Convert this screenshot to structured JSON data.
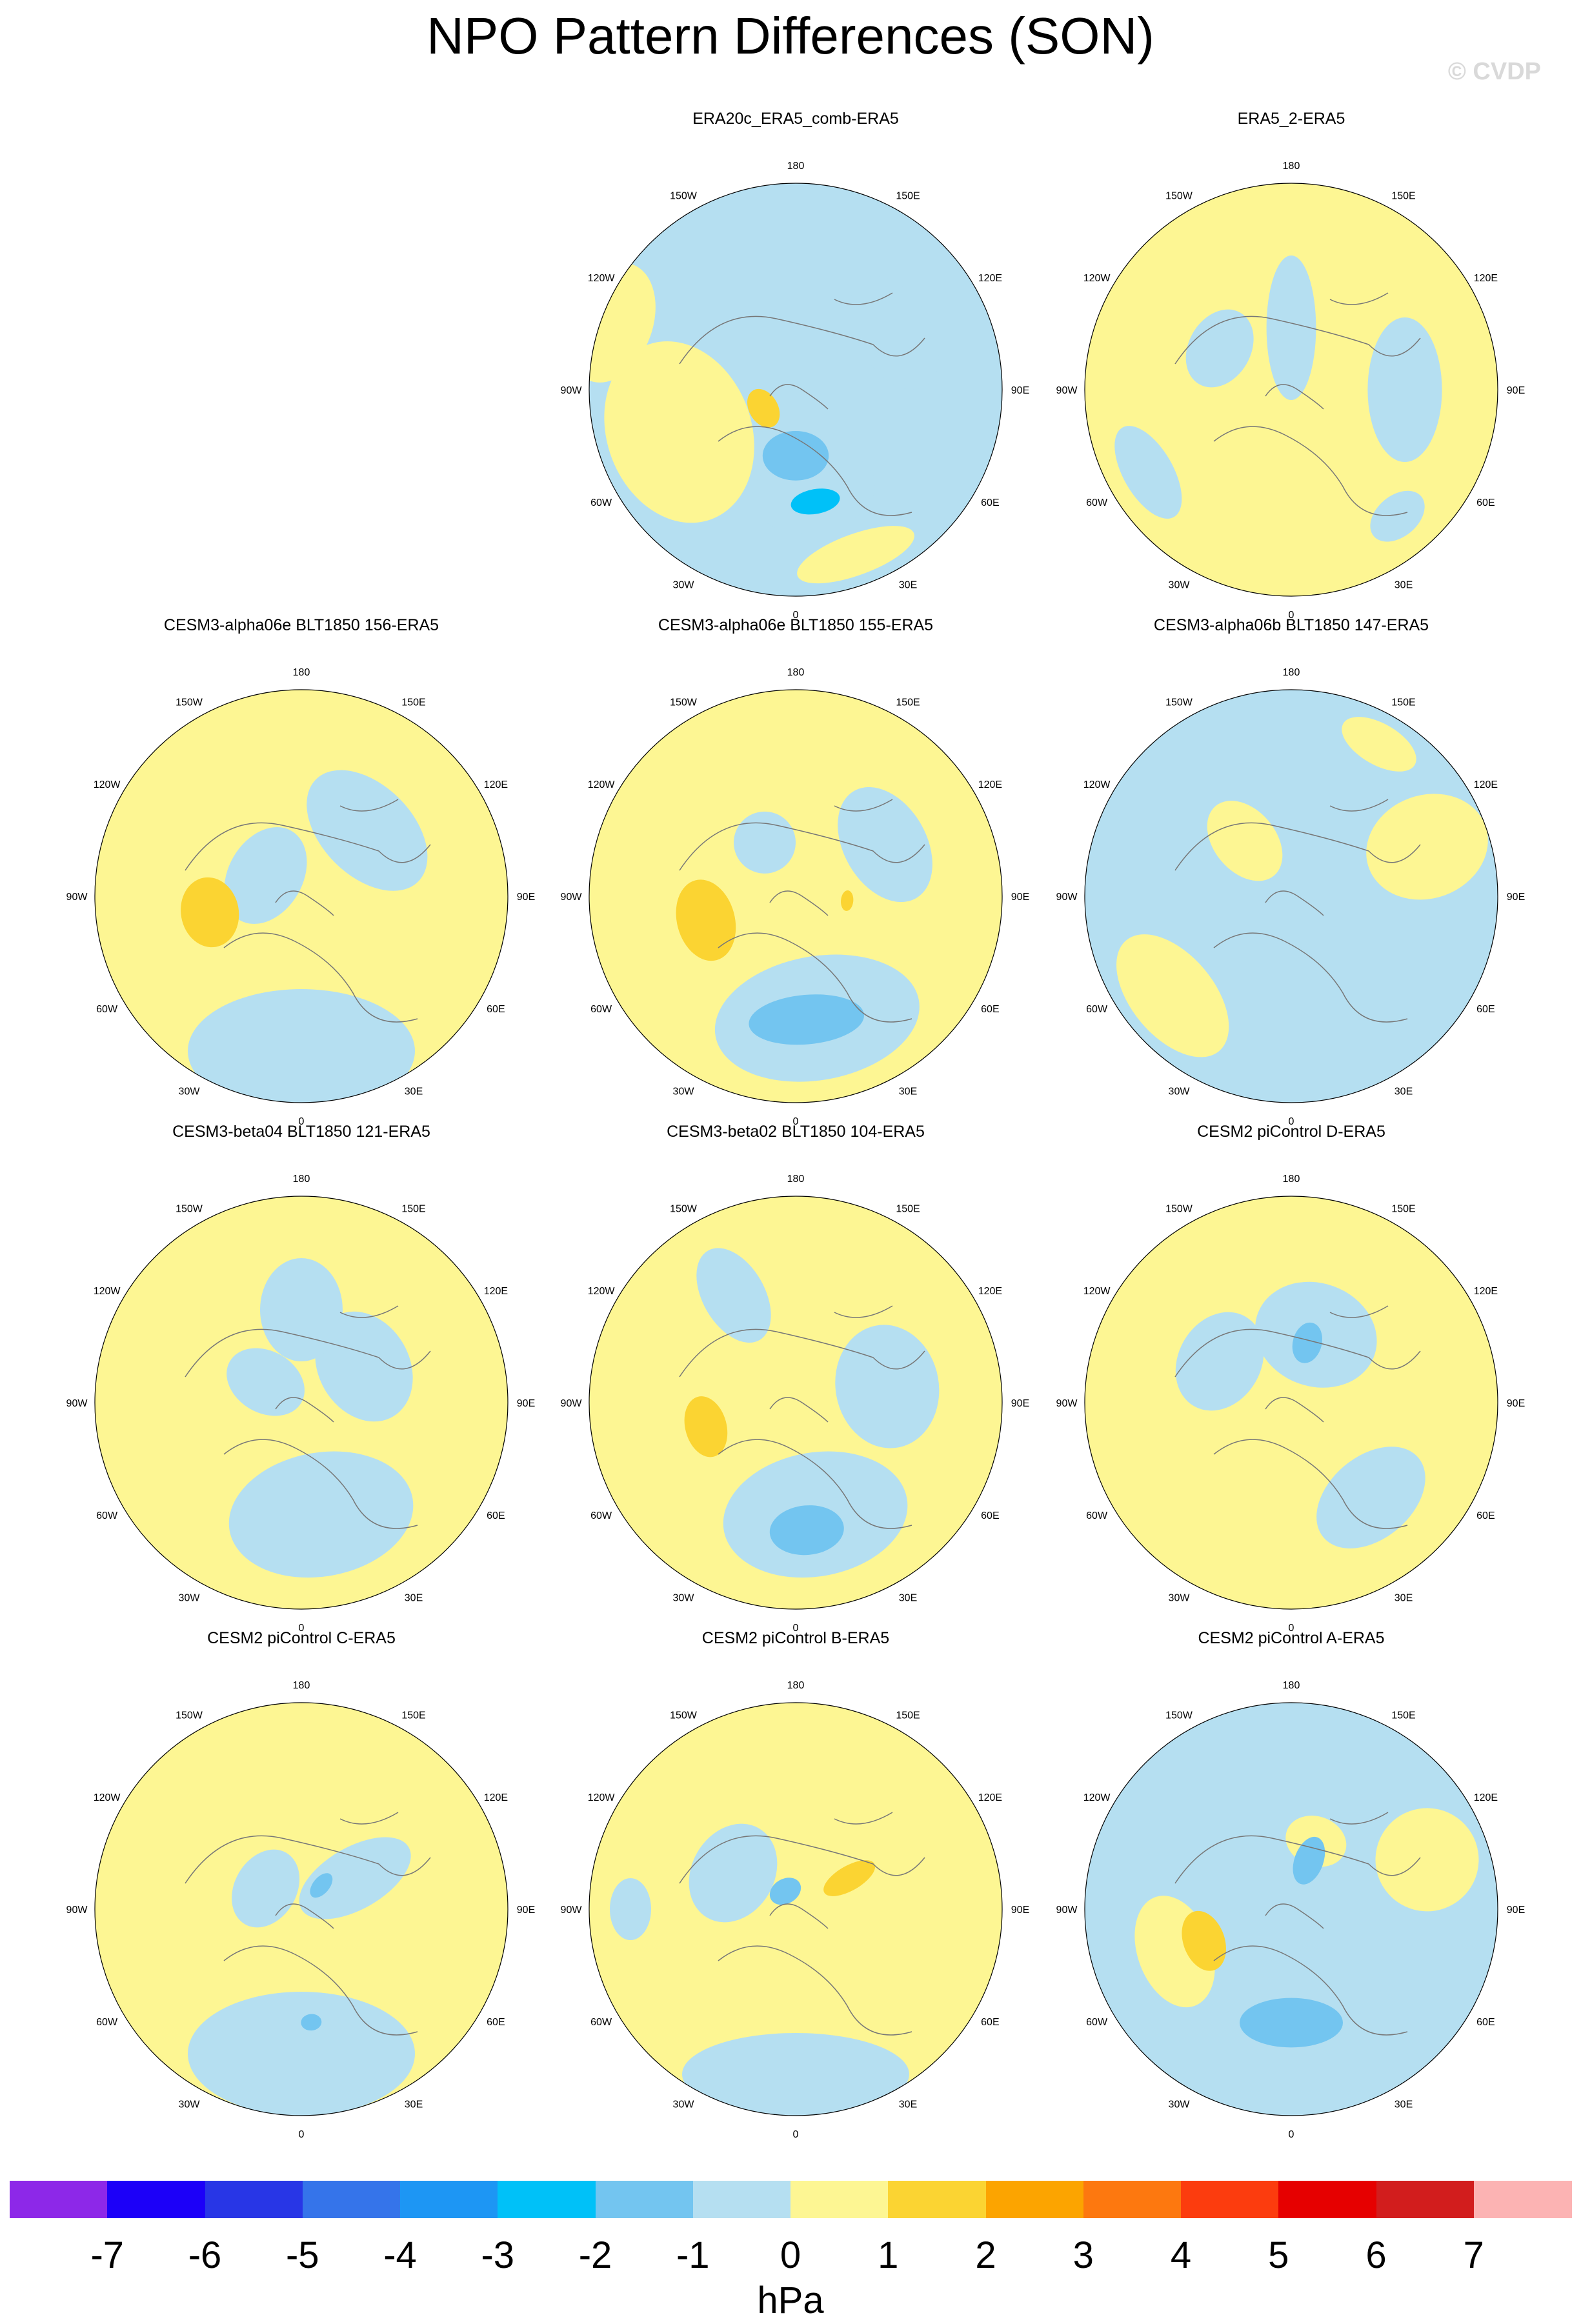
{
  "title": "NPO Pattern Differences (SON)",
  "watermark": "© CVDP",
  "lon_labels": [
    "180",
    "150E",
    "120E",
    "90E",
    "60E",
    "30E",
    "0",
    "30W",
    "60W",
    "90W",
    "120W",
    "150W"
  ],
  "panels": [
    {
      "title": "ERA20c_ERA5_comb-ERA5",
      "row": 0,
      "col": 1,
      "base": "neg",
      "blobs": [
        {
          "a": 170,
          "r": 0.5,
          "rx": 0.3,
          "ry": 0.2,
          "lvl": "neg"
        },
        {
          "a": 60,
          "r": 0.55,
          "rx": 0.3,
          "ry": 0.18,
          "lvl": "neg"
        },
        {
          "a": 250,
          "r": 0.6,
          "rx": 0.45,
          "ry": 0.35,
          "lvl": "pos"
        },
        {
          "a": 160,
          "r": 0.85,
          "rx": 0.3,
          "ry": 0.1,
          "lvl": "pos"
        },
        {
          "a": 290,
          "r": 0.95,
          "rx": 0.3,
          "ry": 0.2,
          "lvl": "pos"
        },
        {
          "a": 180,
          "r": 0.32,
          "rx": 0.16,
          "ry": 0.12,
          "lvl": "neg2"
        },
        {
          "a": 170,
          "r": 0.55,
          "rx": 0.12,
          "ry": 0.06,
          "lvl": "neg3"
        },
        {
          "a": 240,
          "r": 0.18,
          "rx": 0.1,
          "ry": 0.07,
          "lvl": "pos2"
        }
      ]
    },
    {
      "title": "ERA5_2-ERA5",
      "row": 0,
      "col": 2,
      "base": "pos",
      "blobs": [
        {
          "a": 90,
          "r": 0.55,
          "rx": 0.35,
          "ry": 0.18,
          "lvl": "neg"
        },
        {
          "a": 240,
          "r": 0.8,
          "rx": 0.25,
          "ry": 0.12,
          "lvl": "neg"
        },
        {
          "a": 0,
          "r": 0.3,
          "rx": 0.12,
          "ry": 0.35,
          "lvl": "neg"
        },
        {
          "a": 140,
          "r": 0.8,
          "rx": 0.15,
          "ry": 0.1,
          "lvl": "neg"
        },
        {
          "a": 300,
          "r": 0.4,
          "rx": 0.2,
          "ry": 0.15,
          "lvl": "neg"
        }
      ]
    },
    {
      "title": "CESM3-alpha06e BLT1850 156-ERA5",
      "row": 1,
      "col": 0,
      "base": "pos",
      "blobs": [
        {
          "a": 180,
          "r": 0.75,
          "rx": 0.55,
          "ry": 0.3,
          "lvl": "neg"
        },
        {
          "a": 45,
          "r": 0.45,
          "rx": 0.35,
          "ry": 0.22,
          "lvl": "neg"
        },
        {
          "a": 300,
          "r": 0.2,
          "rx": 0.25,
          "ry": 0.18,
          "lvl": "neg"
        },
        {
          "a": 260,
          "r": 0.45,
          "rx": 0.17,
          "ry": 0.14,
          "lvl": "pos2"
        }
      ]
    },
    {
      "title": "CESM3-alpha06e BLT1850 155-ERA5",
      "row": 1,
      "col": 1,
      "base": "pos",
      "blobs": [
        {
          "a": 170,
          "r": 0.6,
          "rx": 0.5,
          "ry": 0.3,
          "lvl": "neg"
        },
        {
          "a": 60,
          "r": 0.5,
          "rx": 0.3,
          "ry": 0.2,
          "lvl": "neg"
        },
        {
          "a": 330,
          "r": 0.3,
          "rx": 0.15,
          "ry": 0.15,
          "lvl": "neg"
        },
        {
          "a": 175,
          "r": 0.6,
          "rx": 0.28,
          "ry": 0.12,
          "lvl": "neg2"
        },
        {
          "a": 255,
          "r": 0.45,
          "rx": 0.2,
          "ry": 0.14,
          "lvl": "pos2"
        },
        {
          "a": 95,
          "r": 0.25,
          "rx": 0.05,
          "ry": 0.03,
          "lvl": "pos2"
        }
      ]
    },
    {
      "title": "CESM3-alpha06b BLT1850 147-ERA5",
      "row": 1,
      "col": 2,
      "base": "neg",
      "blobs": [
        {
          "a": 70,
          "r": 0.7,
          "rx": 0.25,
          "ry": 0.3,
          "lvl": "pos"
        },
        {
          "a": 230,
          "r": 0.75,
          "rx": 0.35,
          "ry": 0.2,
          "lvl": "pos"
        },
        {
          "a": 320,
          "r": 0.35,
          "rx": 0.15,
          "ry": 0.22,
          "lvl": "pos"
        },
        {
          "a": 30,
          "r": 0.85,
          "rx": 0.2,
          "ry": 0.1,
          "lvl": "pos"
        }
      ]
    },
    {
      "title": "CESM3-beta04 BLT1850 121-ERA5",
      "row": 2,
      "col": 0,
      "base": "pos",
      "blobs": [
        {
          "a": 170,
          "r": 0.55,
          "rx": 0.45,
          "ry": 0.3,
          "lvl": "neg"
        },
        {
          "a": 60,
          "r": 0.35,
          "rx": 0.28,
          "ry": 0.22,
          "lvl": "neg"
        },
        {
          "a": 0,
          "r": 0.45,
          "rx": 0.2,
          "ry": 0.25,
          "lvl": "neg"
        },
        {
          "a": 300,
          "r": 0.2,
          "rx": 0.15,
          "ry": 0.2,
          "lvl": "neg"
        }
      ]
    },
    {
      "title": "CESM3-beta02 BLT1850 104-ERA5",
      "row": 2,
      "col": 1,
      "base": "pos",
      "blobs": [
        {
          "a": 170,
          "r": 0.55,
          "rx": 0.45,
          "ry": 0.3,
          "lvl": "neg"
        },
        {
          "a": 80,
          "r": 0.45,
          "rx": 0.3,
          "ry": 0.25,
          "lvl": "neg"
        },
        {
          "a": 330,
          "r": 0.6,
          "rx": 0.15,
          "ry": 0.25,
          "lvl": "neg"
        },
        {
          "a": 175,
          "r": 0.62,
          "rx": 0.18,
          "ry": 0.12,
          "lvl": "neg2"
        },
        {
          "a": 255,
          "r": 0.45,
          "rx": 0.15,
          "ry": 0.1,
          "lvl": "pos2"
        }
      ]
    },
    {
      "title": "CESM2 piControl D-ERA5",
      "row": 2,
      "col": 2,
      "base": "pos",
      "blobs": [
        {
          "a": 140,
          "r": 0.6,
          "rx": 0.3,
          "ry": 0.2,
          "lvl": "neg"
        },
        {
          "a": 20,
          "r": 0.35,
          "rx": 0.3,
          "ry": 0.25,
          "lvl": "neg"
        },
        {
          "a": 300,
          "r": 0.4,
          "rx": 0.25,
          "ry": 0.2,
          "lvl": "neg"
        },
        {
          "a": 15,
          "r": 0.3,
          "rx": 0.07,
          "ry": 0.1,
          "lvl": "neg2"
        }
      ]
    },
    {
      "title": "CESM2 piControl C-ERA5",
      "row": 3,
      "col": 0,
      "base": "pos",
      "blobs": [
        {
          "a": 180,
          "r": 0.7,
          "rx": 0.55,
          "ry": 0.3,
          "lvl": "neg"
        },
        {
          "a": 300,
          "r": 0.2,
          "rx": 0.2,
          "ry": 0.15,
          "lvl": "neg"
        },
        {
          "a": 60,
          "r": 0.3,
          "rx": 0.15,
          "ry": 0.3,
          "lvl": "neg"
        },
        {
          "a": 175,
          "r": 0.55,
          "rx": 0.05,
          "ry": 0.04,
          "lvl": "neg2"
        },
        {
          "a": 40,
          "r": 0.15,
          "rx": 0.04,
          "ry": 0.07,
          "lvl": "neg2"
        }
      ]
    },
    {
      "title": "CESM2 piControl B-ERA5",
      "row": 3,
      "col": 1,
      "base": "pos",
      "blobs": [
        {
          "a": 180,
          "r": 0.8,
          "rx": 0.55,
          "ry": 0.2,
          "lvl": "neg"
        },
        {
          "a": 300,
          "r": 0.35,
          "rx": 0.25,
          "ry": 0.2,
          "lvl": "neg"
        },
        {
          "a": 270,
          "r": 0.8,
          "rx": 0.15,
          "ry": 0.1,
          "lvl": "neg"
        },
        {
          "a": 330,
          "r": 0.1,
          "rx": 0.08,
          "ry": 0.06,
          "lvl": "neg2"
        },
        {
          "a": 60,
          "r": 0.3,
          "rx": 0.06,
          "ry": 0.14,
          "lvl": "pos2"
        }
      ]
    },
    {
      "title": "CESM2 piControl A-ERA5",
      "row": 3,
      "col": 2,
      "base": "neg",
      "blobs": [
        {
          "a": 70,
          "r": 0.7,
          "rx": 0.25,
          "ry": 0.25,
          "lvl": "pos"
        },
        {
          "a": 250,
          "r": 0.6,
          "rx": 0.28,
          "ry": 0.18,
          "lvl": "pos"
        },
        {
          "a": 20,
          "r": 0.35,
          "rx": 0.15,
          "ry": 0.12,
          "lvl": "pos"
        },
        {
          "a": 180,
          "r": 0.55,
          "rx": 0.25,
          "ry": 0.12,
          "lvl": "neg2"
        },
        {
          "a": 250,
          "r": 0.45,
          "rx": 0.15,
          "ry": 0.1,
          "lvl": "pos2"
        },
        {
          "a": 20,
          "r": 0.25,
          "rx": 0.07,
          "ry": 0.12,
          "lvl": "neg2"
        }
      ]
    }
  ],
  "level_colors": {
    "neg": "#b5dff1",
    "pos": "#fdf693",
    "neg2": "#73c5f0",
    "neg3": "#00c1f8",
    "pos2": "#fbd432"
  },
  "colorbar": {
    "colors": [
      "#8d28e8",
      "#1c00f8",
      "#2836e6",
      "#3574ea",
      "#1d96f4",
      "#00c1f8",
      "#73c5f0",
      "#b5dff1",
      "#fdf693",
      "#fbd432",
      "#fca400",
      "#fd780f",
      "#fc3c0e",
      "#e60000",
      "#d21d1d",
      "#fcb3b3"
    ],
    "labels": [
      "-7",
      "-6",
      "-5",
      "-4",
      "-3",
      "-2",
      "-1",
      "0",
      "1",
      "2",
      "3",
      "4",
      "5",
      "6",
      "7"
    ],
    "unit": "hPa"
  }
}
